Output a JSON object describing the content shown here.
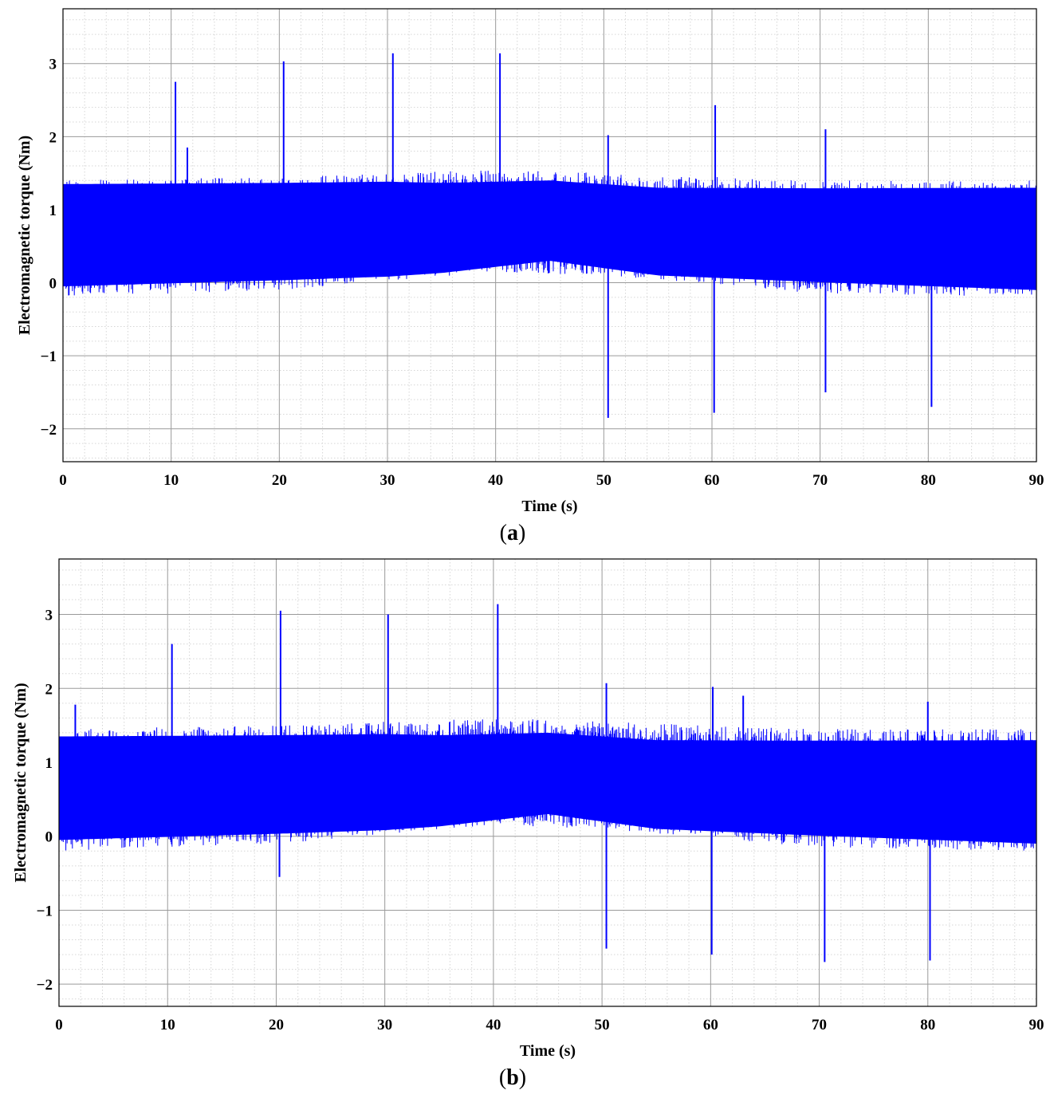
{
  "chart_data": [
    {
      "type": "line",
      "panel_label": "(a)",
      "title": "",
      "xlabel": "Time (s)",
      "ylabel": "Electromagnetic torque (Nm)",
      "xlim": [
        0,
        90
      ],
      "ylim": [
        -2.45,
        3.75
      ],
      "xticks": [
        0,
        10,
        20,
        30,
        40,
        50,
        60,
        70,
        80,
        90
      ],
      "yticks": [
        -2,
        -1,
        0,
        1,
        2,
        3
      ],
      "grid": true,
      "minor_grid": true,
      "legend": "none",
      "series": [
        {
          "color": "#0000ff",
          "band_center": [
            [
              0,
              0.65
            ],
            [
              20,
              0.7
            ],
            [
              35,
              0.75
            ],
            [
              45,
              0.85
            ],
            [
              55,
              0.7
            ],
            [
              70,
              0.65
            ],
            [
              90,
              0.6
            ]
          ],
          "band_halfwidth": [
            [
              0,
              0.7
            ],
            [
              30,
              0.65
            ],
            [
              45,
              0.55
            ],
            [
              55,
              0.6
            ],
            [
              90,
              0.7
            ]
          ],
          "noise_envelope": [
            [
              0,
              -0.2,
              1.4
            ],
            [
              20,
              -0.1,
              1.45
            ],
            [
              40,
              0.15,
              1.55
            ],
            [
              50,
              0.1,
              1.5
            ],
            [
              70,
              -0.15,
              1.4
            ],
            [
              90,
              -0.2,
              1.4
            ]
          ],
          "positive_spikes": [
            [
              10.4,
              2.75
            ],
            [
              11.5,
              1.85
            ],
            [
              20.4,
              3.03
            ],
            [
              30.5,
              3.14
            ],
            [
              40.4,
              3.14
            ],
            [
              50.4,
              2.02
            ],
            [
              60.3,
              2.43
            ],
            [
              70.5,
              2.1
            ]
          ],
          "negative_spikes": [
            [
              50.4,
              -1.85
            ],
            [
              60.2,
              -1.78
            ],
            [
              70.5,
              -1.5
            ],
            [
              80.3,
              -1.7
            ]
          ]
        }
      ]
    },
    {
      "type": "line",
      "panel_label": "(b)",
      "title": "",
      "xlabel": "Time (s)",
      "ylabel": "Electromagnetic torque (Nm)",
      "xlim": [
        0,
        90
      ],
      "ylim": [
        -2.3,
        3.75
      ],
      "xticks": [
        0,
        10,
        20,
        30,
        40,
        50,
        60,
        70,
        80,
        90
      ],
      "yticks": [
        -2,
        -1,
        0,
        1,
        2,
        3
      ],
      "grid": true,
      "minor_grid": true,
      "legend": "none",
      "series": [
        {
          "color": "#0000ff",
          "band_center": [
            [
              0,
              0.65
            ],
            [
              20,
              0.7
            ],
            [
              35,
              0.75
            ],
            [
              45,
              0.85
            ],
            [
              55,
              0.7
            ],
            [
              70,
              0.65
            ],
            [
              90,
              0.6
            ]
          ],
          "band_halfwidth": [
            [
              0,
              0.7
            ],
            [
              30,
              0.65
            ],
            [
              45,
              0.55
            ],
            [
              55,
              0.6
            ],
            [
              90,
              0.7
            ]
          ],
          "noise_envelope": [
            [
              0,
              -0.2,
              1.45
            ],
            [
              20,
              -0.1,
              1.5
            ],
            [
              40,
              0.15,
              1.6
            ],
            [
              50,
              0.1,
              1.55
            ],
            [
              70,
              -0.15,
              1.45
            ],
            [
              90,
              -0.2,
              1.45
            ]
          ],
          "positive_spikes": [
            [
              1.5,
              1.78
            ],
            [
              10.4,
              2.6
            ],
            [
              20.4,
              3.05
            ],
            [
              30.3,
              3.0
            ],
            [
              40.4,
              3.14
            ],
            [
              50.4,
              2.07
            ],
            [
              60.2,
              2.02
            ],
            [
              63.0,
              1.9
            ],
            [
              80.0,
              1.82
            ]
          ],
          "negative_spikes": [
            [
              20.3,
              -0.55
            ],
            [
              50.4,
              -1.52
            ],
            [
              60.1,
              -1.6
            ],
            [
              70.5,
              -1.7
            ],
            [
              80.2,
              -1.68
            ]
          ]
        }
      ]
    }
  ]
}
